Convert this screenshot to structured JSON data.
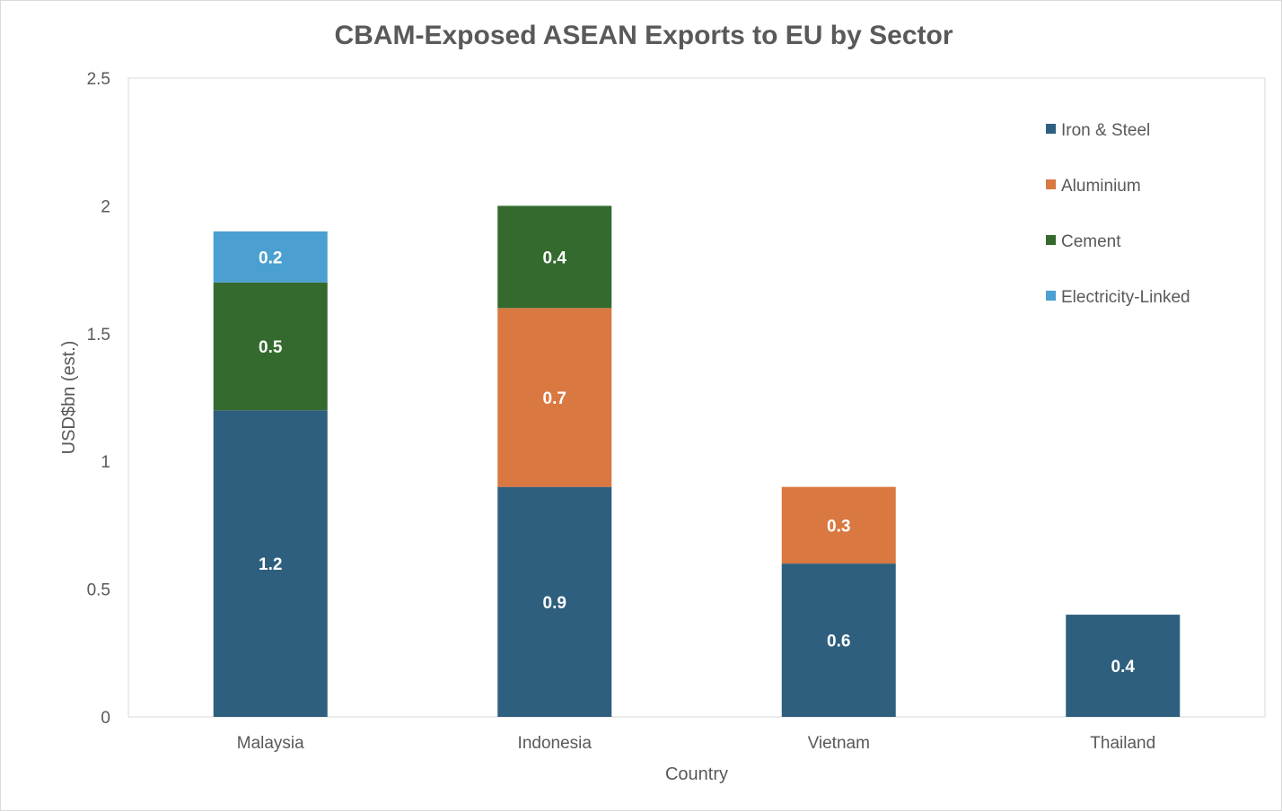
{
  "chart_data": {
    "type": "bar",
    "stacked": true,
    "title": "CBAM-Exposed ASEAN Exports to EU by Sector",
    "xlabel": "Country",
    "ylabel": "USD$bn (est.)",
    "ylim": [
      0,
      2.5
    ],
    "yticks": [
      "0",
      "0.5",
      "1",
      "1.5",
      "2",
      "2.5"
    ],
    "categories": [
      "Malaysia",
      "Indonesia",
      "Vietnam",
      "Thailand"
    ],
    "legend_position": "top-right",
    "series": [
      {
        "name": "Iron & Steel",
        "color": "#2e5f7e",
        "values": [
          1.2,
          0.9,
          0.6,
          0.4
        ]
      },
      {
        "name": "Aluminium",
        "color": "#d97841",
        "values": [
          0,
          0.7,
          0.3,
          0
        ]
      },
      {
        "name": "Cement",
        "color": "#346a2e",
        "values": [
          0.5,
          0.4,
          0,
          0
        ]
      },
      {
        "name": "Electricity-Linked",
        "color": "#4b9fd1",
        "values": [
          0.2,
          0,
          0,
          0
        ]
      }
    ]
  }
}
